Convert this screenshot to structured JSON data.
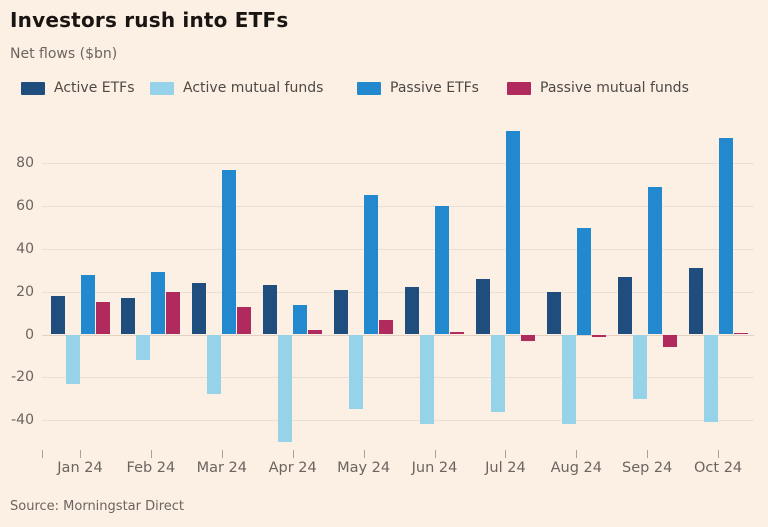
{
  "header": {
    "title": "Investors rush into ETFs",
    "subtitle": "Net flows ($bn)"
  },
  "footer": {
    "source": "Source: Morningstar Direct"
  },
  "colors": {
    "background": "#fcefe3",
    "title_text": "#181512",
    "muted_text": "#6b6560",
    "gridline": "#eadfd4",
    "zero_line": "#e0d1c4",
    "tick": "#aaa199"
  },
  "chart_data": {
    "type": "bar",
    "title": "Investors rush into ETFs",
    "subtitle": "Net flows ($bn)",
    "ylabel": "Net flows ($bn)",
    "xlabel": "",
    "grid": true,
    "legend_position": "top",
    "ylim": [
      -54,
      104
    ],
    "yticks": [
      80,
      60,
      40,
      20,
      0,
      -20,
      -40
    ],
    "categories": [
      "Jan 24",
      "Feb 24",
      "Mar 24",
      "Apr 24",
      "May 24",
      "Jun 24",
      "Jul 24",
      "Aug 24",
      "Sep 24",
      "Oct 24"
    ],
    "series": [
      {
        "name": "Active ETFs",
        "color": "#1f4e7e",
        "values": [
          18,
          17,
          24,
          23,
          21,
          22,
          26,
          20,
          27,
          31
        ]
      },
      {
        "name": "Active mutual funds",
        "color": "#97d3e8",
        "values": [
          -23,
          -12,
          -28,
          -50,
          -35,
          -42,
          -36,
          -42,
          -30,
          -41
        ]
      },
      {
        "name": "Passive ETFs",
        "color": "#2289ce",
        "values": [
          28,
          29,
          77,
          14,
          65,
          60,
          95,
          50,
          69,
          92
        ]
      },
      {
        "name": "Passive mutual funds",
        "color": "#b02a5e",
        "values": [
          15,
          20,
          13,
          2,
          7,
          1,
          -3,
          -1,
          -6,
          0.5
        ]
      }
    ]
  }
}
